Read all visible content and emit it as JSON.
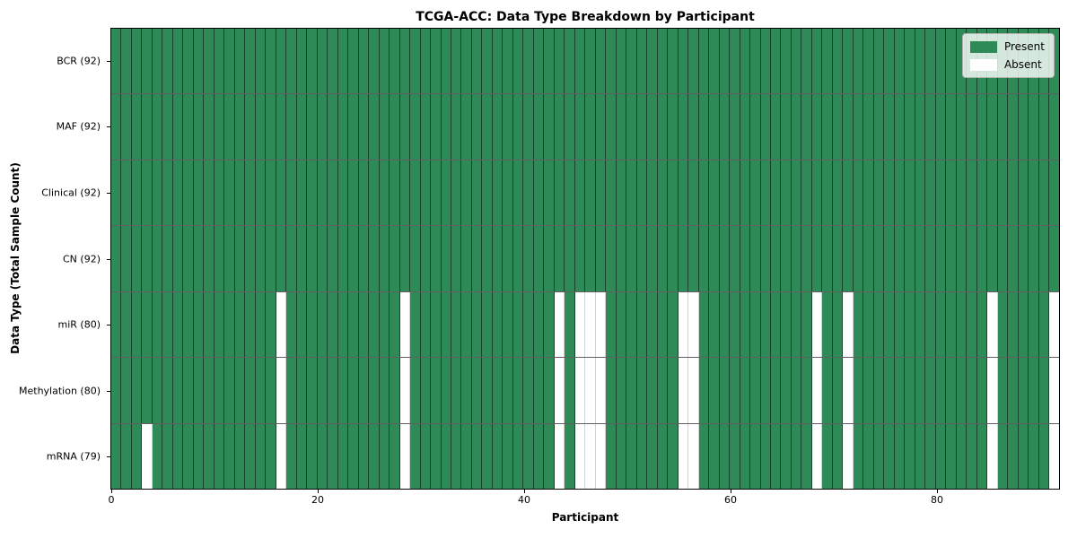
{
  "chart_data": {
    "type": "heatmap",
    "title": "TCGA-ACC: Data Type Breakdown by Participant",
    "xlabel": "Participant",
    "ylabel": "Data Type (Total Sample Count)",
    "n_participants": 92,
    "xlim": [
      0,
      92
    ],
    "x_ticks": [
      0,
      20,
      40,
      60,
      80
    ],
    "legend": {
      "position": "upper right",
      "entries": [
        {
          "label": "Present",
          "color": "#2e8b57"
        },
        {
          "label": "Absent",
          "color": "#ffffff"
        }
      ]
    },
    "colors": {
      "present": "#2e8b57",
      "absent": "#ffffff",
      "cell_edge_on_present": "#1c4a31",
      "cell_edge_on_absent": "#d4d4d4",
      "row_separator": "#5f5f5f",
      "plot_border": "#000000"
    },
    "rows": [
      {
        "label": "BCR (92)",
        "data_type": "BCR",
        "present_count": 92,
        "absent_participants": []
      },
      {
        "label": "MAF (92)",
        "data_type": "MAF",
        "present_count": 92,
        "absent_participants": []
      },
      {
        "label": "Clinical (92)",
        "data_type": "Clinical",
        "present_count": 92,
        "absent_participants": []
      },
      {
        "label": "CN (92)",
        "data_type": "CN",
        "present_count": 92,
        "absent_participants": []
      },
      {
        "label": "miR (80)",
        "data_type": "miR",
        "present_count": 80,
        "absent_participants": [
          16,
          28,
          43,
          45,
          46,
          47,
          55,
          56,
          68,
          71,
          85,
          91
        ]
      },
      {
        "label": "Methylation (80)",
        "data_type": "Methylation",
        "present_count": 80,
        "absent_participants": [
          16,
          28,
          43,
          45,
          46,
          47,
          55,
          56,
          68,
          71,
          85,
          91
        ]
      },
      {
        "label": "mRNA (79)",
        "data_type": "mRNA",
        "present_count": 79,
        "absent_participants": [
          3,
          16,
          28,
          43,
          45,
          46,
          47,
          55,
          56,
          68,
          71,
          85,
          91
        ]
      }
    ]
  }
}
